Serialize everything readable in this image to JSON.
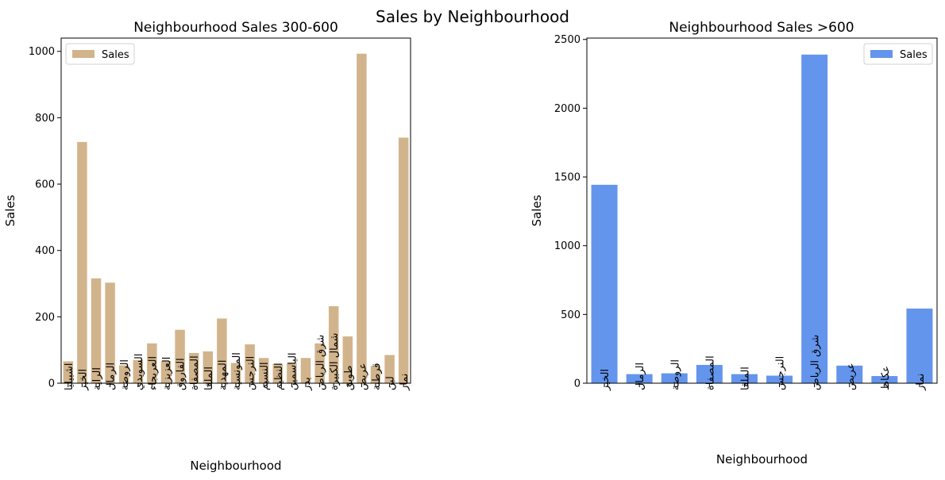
{
  "figure": {
    "suptitle": "Sales by Neighbourhood"
  },
  "colors": {
    "left_bars": "#d2b48c",
    "right_bars": "#6495ed",
    "axis": "#000000"
  },
  "chart_data": [
    {
      "type": "bar",
      "title": "Neighbourhood Sales 300-600",
      "xlabel": "Neighbourhood",
      "ylabel": "Sales",
      "ylim": [
        0,
        1040
      ],
      "yticks": [
        0,
        200,
        400,
        600,
        800,
        1000
      ],
      "legend": {
        "label": "Sales",
        "position": "top-left"
      },
      "categories": [
        "اشبيليا",
        "الخير",
        "الراية",
        "الرمال",
        "الروضة",
        "السويدي",
        "العريجاء",
        "العزيزية",
        "الفاروق",
        "المصفاة",
        "الملقا",
        "المهدية",
        "المونسية",
        "النرجس",
        "النسيم",
        "النظيم",
        "الياسمين",
        "بدر",
        "شرق الرياض",
        "شمال الكبيرة",
        "طويق",
        "عريض",
        "قرطبة",
        "لبن",
        "نمار"
      ],
      "values": [
        66,
        727,
        316,
        303,
        54,
        70,
        120,
        67,
        161,
        91,
        96,
        195,
        61,
        117,
        76,
        58,
        62,
        76,
        120,
        232,
        141,
        993,
        52,
        85,
        740
      ]
    },
    {
      "type": "bar",
      "title": "Neighbourhood Sales >600",
      "xlabel": "Neighbourhood",
      "ylabel": "Sales",
      "ylim": [
        0,
        2510
      ],
      "yticks": [
        0,
        500,
        1000,
        1500,
        2000,
        2500
      ],
      "legend": {
        "label": "Sales",
        "position": "top-right"
      },
      "categories": [
        "الخير",
        "الرمال",
        "الروضة",
        "المصفاة",
        "الملقا",
        "النرجس",
        "شرق الرياض",
        "عريض",
        "عكاظ",
        "نمار"
      ],
      "values": [
        1443,
        66,
        72,
        133,
        66,
        55,
        2390,
        128,
        52,
        543
      ]
    }
  ]
}
